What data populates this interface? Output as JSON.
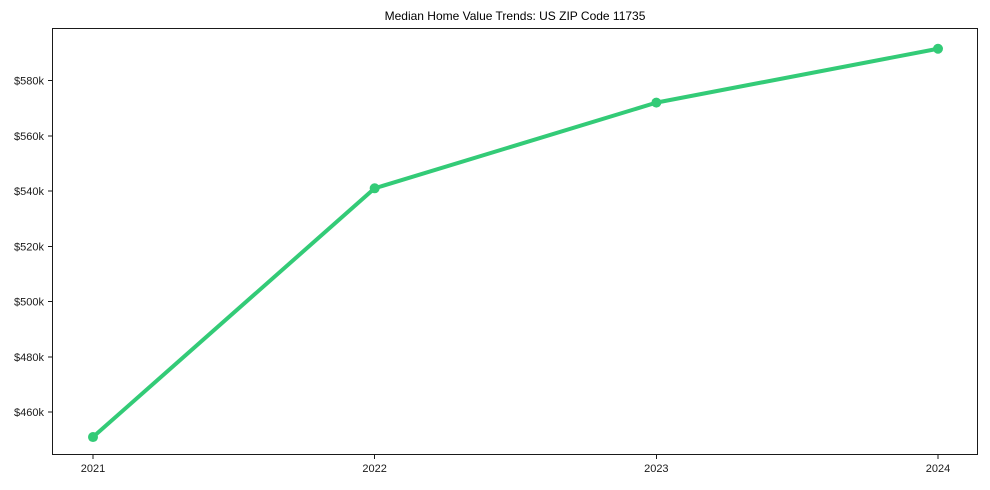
{
  "chart_data": {
    "type": "line",
    "title": "Median Home Value Trends: US ZIP Code 11735",
    "x_labels": [
      "2021",
      "2022",
      "2023",
      "2024"
    ],
    "series": [
      {
        "name": "Median home value",
        "values": [
          451000,
          541000,
          572000,
          591500
        ],
        "color": "#33cb77"
      }
    ],
    "y_ticks": [
      460000,
      480000,
      500000,
      520000,
      540000,
      560000,
      580000
    ],
    "y_tick_labels": [
      "$460k",
      "$480k",
      "$500k",
      "$520k",
      "$540k",
      "$560k",
      "$580k"
    ],
    "ylim": [
      444500,
      599000
    ],
    "xlabel": "",
    "ylabel": "",
    "grid": false,
    "legend": "none",
    "marker": "circle",
    "line_width": 4,
    "marker_radius": 5,
    "axis_color": "#1a1a1a",
    "tick_label_color": "#1a1a1a",
    "title_color": "#000000",
    "background": "#ffffff"
  }
}
